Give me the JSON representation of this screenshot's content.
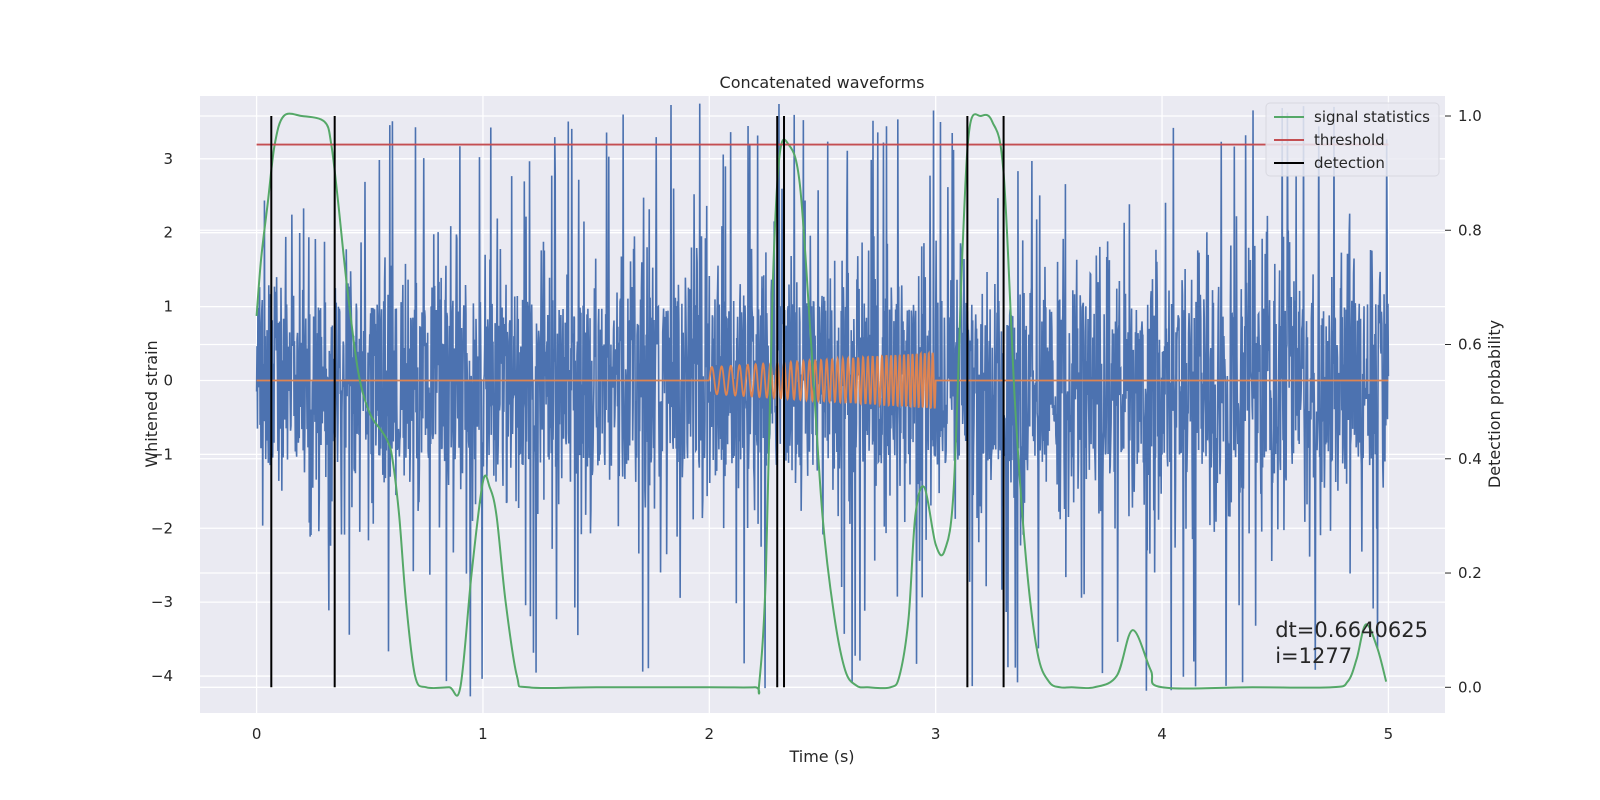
{
  "chart_data": {
    "type": "line",
    "title": "Concatenated waveforms",
    "xlabel": "Time (s)",
    "ylabel": "Whitened strain",
    "y2label": "Detection probability",
    "xlim": [
      -0.25,
      5.25
    ],
    "ylim": [
      -4.5,
      3.85
    ],
    "y2lim": [
      -0.045,
      1.035
    ],
    "xticks": [
      0,
      1,
      2,
      3,
      4,
      5
    ],
    "xtick_labels": [
      "0",
      "1",
      "2",
      "3",
      "4",
      "5"
    ],
    "yticks": [
      -4,
      -3,
      -2,
      -1,
      0,
      1,
      2,
      3
    ],
    "ytick_labels": [
      "−4",
      "−3",
      "−2",
      "−1",
      "0",
      "1",
      "2",
      "3"
    ],
    "y2ticks": [
      0.0,
      0.2,
      0.4,
      0.6,
      0.8,
      1.0
    ],
    "y2tick_labels": [
      "0.0",
      "0.2",
      "0.4",
      "0.6",
      "0.8",
      "1.0"
    ],
    "grid": true,
    "legend_position": "top-right",
    "colors": {
      "strain": "#4c72b0",
      "injection": "#dd8452",
      "signal": "#55a868",
      "threshold": "#c44e52",
      "detection": "#000000",
      "background": "#eaeaf2"
    },
    "series": [
      {
        "name": "",
        "axis": "left",
        "kind": "noise",
        "x_range": [
          0,
          5
        ],
        "envelope": {
          "band_low": -1.15,
          "band_high": 1.1,
          "spike_min": -4.3,
          "spike_max": 3.75
        }
      },
      {
        "name": "",
        "axis": "left",
        "kind": "chirp",
        "x_range": [
          2.0,
          3.0
        ],
        "amplitude_start": 0.18,
        "amplitude_end": 0.38,
        "flat_value": 0
      },
      {
        "name": "signal statistics",
        "axis": "right",
        "x": [
          0.0,
          0.02,
          0.05,
          0.08,
          0.12,
          0.2,
          0.3,
          0.33,
          0.36,
          0.4,
          0.45,
          0.5,
          0.55,
          0.58,
          0.6,
          0.63,
          0.66,
          0.7,
          0.75,
          0.85,
          0.9,
          0.95,
          1.0,
          1.03,
          1.06,
          1.1,
          1.15,
          1.2,
          1.5,
          2.0,
          2.2,
          2.22,
          2.25,
          2.28,
          2.31,
          2.35,
          2.4,
          2.45,
          2.5,
          2.55,
          2.6,
          2.65,
          2.7,
          2.8,
          2.84,
          2.88,
          2.91,
          2.95,
          3.0,
          3.04,
          3.08,
          3.12,
          3.15,
          3.2,
          3.25,
          3.3,
          3.35,
          3.4,
          3.45,
          3.5,
          3.55,
          3.6,
          3.7,
          3.8,
          3.87,
          3.95,
          4.0,
          4.4,
          4.75,
          4.82,
          4.86,
          4.9,
          4.95,
          4.99
        ],
        "values": [
          0.65,
          0.75,
          0.85,
          0.95,
          1.0,
          1.0,
          0.99,
          0.95,
          0.85,
          0.7,
          0.55,
          0.48,
          0.45,
          0.43,
          0.4,
          0.3,
          0.15,
          0.02,
          0.0,
          0.0,
          0.0,
          0.2,
          0.36,
          0.35,
          0.3,
          0.15,
          0.02,
          0.0,
          0.0,
          0.0,
          0.0,
          0.005,
          0.2,
          0.7,
          0.93,
          0.95,
          0.88,
          0.6,
          0.3,
          0.13,
          0.03,
          0.003,
          0.0,
          0.0,
          0.02,
          0.12,
          0.3,
          0.35,
          0.25,
          0.24,
          0.35,
          0.78,
          0.98,
          1.0,
          0.99,
          0.9,
          0.5,
          0.22,
          0.06,
          0.01,
          0.0,
          0.0,
          0.0,
          0.02,
          0.1,
          0.03,
          0.0,
          0.0,
          0.0,
          0.01,
          0.05,
          0.11,
          0.07,
          0.01
        ]
      },
      {
        "name": "threshold",
        "axis": "right",
        "x": [
          0,
          5
        ],
        "values": [
          0.95,
          0.95
        ]
      },
      {
        "name": "detection",
        "axis": "right",
        "kind": "vlines",
        "x": [
          0.065,
          0.345,
          2.3,
          2.33,
          3.14,
          3.3
        ],
        "range": [
          0.0,
          1.0
        ]
      }
    ],
    "annotations": [
      {
        "text": "dt=0.6640625",
        "x": 4.5,
        "y2": 0.1
      },
      {
        "text": " i=1277",
        "x": 4.5,
        "y2": 0.055
      }
    ]
  }
}
